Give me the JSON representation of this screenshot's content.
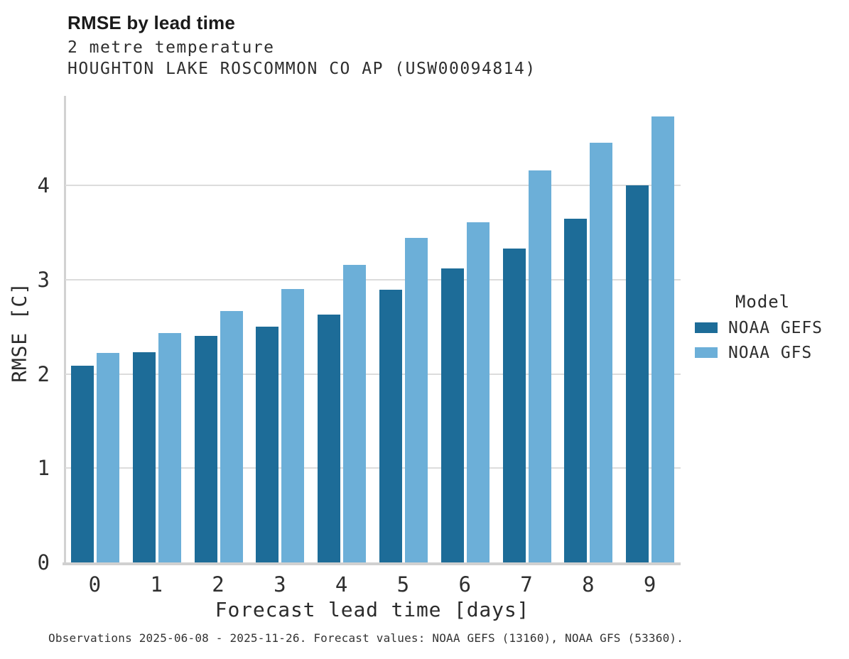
{
  "header": {
    "title": "RMSE by lead time",
    "subtitle": "2 metre temperature",
    "station": "HOUGHTON LAKE ROSCOMMON CO AP (USW00094814)"
  },
  "legend": {
    "title": "Model"
  },
  "caption": "Observations 2025-06-08 - 2025-11-26. Forecast values: NOAA GEFS (13160), NOAA GFS (53360).",
  "colors": {
    "gefs_dark_blue": "#1d6c98",
    "gfs_light_blue": "#6cafd8",
    "gridline_gray": "#dcdcdc"
  },
  "chart_data": {
    "type": "bar",
    "title": "RMSE by lead time",
    "subtitle": "2 metre temperature",
    "station": "HOUGHTON LAKE ROSCOMMON CO AP (USW00094814)",
    "xlabel": "Forecast lead time [days]",
    "ylabel": "RMSE [C]",
    "categories": [
      0,
      1,
      2,
      3,
      4,
      5,
      6,
      7,
      8,
      9
    ],
    "series": [
      {
        "name": "NOAA GEFS",
        "color": "#1d6c98",
        "values": [
          2.09,
          2.23,
          2.4,
          2.5,
          2.63,
          2.89,
          3.12,
          3.33,
          3.65,
          4.0
        ]
      },
      {
        "name": "NOAA GFS",
        "color": "#6cafd8",
        "values": [
          2.22,
          2.43,
          2.67,
          2.9,
          3.16,
          3.44,
          3.61,
          4.16,
          4.45,
          4.73
        ]
      }
    ],
    "ylim": [
      0,
      4.95
    ],
    "yticks": [
      0,
      1,
      2,
      3,
      4
    ],
    "grid": true,
    "legend_title": "Model",
    "legend_position": "right"
  }
}
